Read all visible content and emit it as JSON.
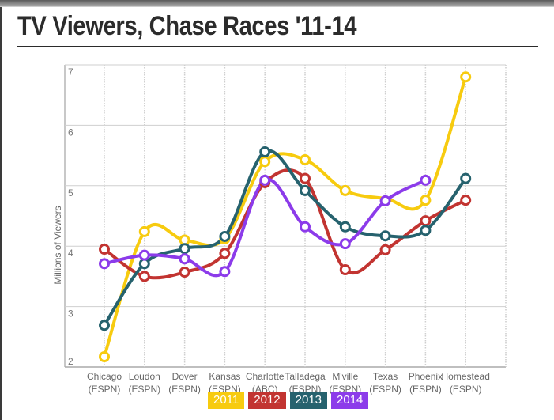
{
  "chart_data": {
    "type": "line",
    "title": "TV Viewers, Chase Races '11-14",
    "xlabel": "",
    "ylabel": "Millions of Viewers",
    "ylim": [
      2,
      7
    ],
    "yticks": [
      2,
      3,
      4,
      5,
      6,
      7
    ],
    "grid": true,
    "legend_position": "bottom-center",
    "categories": [
      {
        "name": "Chicago",
        "network": "(ESPN)"
      },
      {
        "name": "Loudon",
        "network": "(ESPN)"
      },
      {
        "name": "Dover",
        "network": "(ESPN)"
      },
      {
        "name": "Kansas",
        "network": "(ESPN)"
      },
      {
        "name": "Charlotte",
        "network": "(ABC)"
      },
      {
        "name": "Talladega",
        "network": "(ESPN)"
      },
      {
        "name": "M'ville",
        "network": "(ESPN)"
      },
      {
        "name": "Texas",
        "network": "(ESPN)"
      },
      {
        "name": "Phoenix",
        "network": "(ESPN)"
      },
      {
        "name": "Homestead",
        "network": "(ESPN)"
      }
    ],
    "series": [
      {
        "name": "2011",
        "color": "#f7cb0f",
        "values": [
          2.17,
          4.24,
          4.1,
          4.12,
          5.4,
          5.43,
          4.92,
          null,
          4.76,
          6.8
        ]
      },
      {
        "name": "2012",
        "color": "#c23431",
        "values": [
          3.95,
          3.5,
          3.57,
          3.88,
          5.05,
          5.12,
          3.61,
          3.94,
          4.42,
          4.76
        ]
      },
      {
        "name": "2013",
        "color": "#26626e",
        "values": [
          2.69,
          3.71,
          3.96,
          4.16,
          5.56,
          4.92,
          4.32,
          4.17,
          4.26,
          5.12
        ]
      },
      {
        "name": "2014",
        "color": "#8c3bea",
        "values": [
          3.71,
          3.85,
          3.79,
          3.58,
          5.09,
          4.32,
          4.04,
          4.75,
          5.09,
          null
        ]
      }
    ]
  }
}
